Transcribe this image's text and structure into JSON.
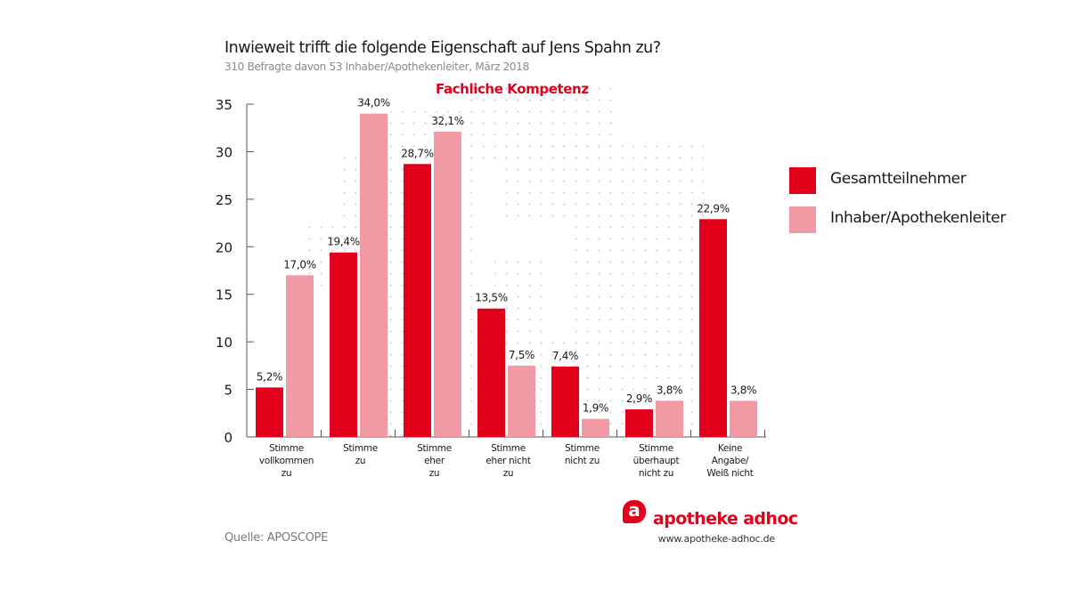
{
  "header": {
    "title": "Inwieweit trifft die folgende Eigenschaft auf Jens Spahn zu?",
    "subtitle": "310 Befragte davon 53 Inhaber/Apothekenleiter, März 2018"
  },
  "footer": {
    "source": "Quelle: APOSCOPE",
    "brand_mark": "a",
    "brand_name": "apotheke adhoc",
    "brand_url": "www.apotheke-adhoc.de"
  },
  "colors": {
    "series_1": "#e2001a",
    "series_2": "#f29aa3",
    "accent": "#e2001a",
    "axis": "#555555",
    "dots": "#cfcfcf"
  },
  "chart_data": {
    "type": "bar",
    "title": "Inwieweit trifft die folgende Eigenschaft auf Jens Spahn zu?",
    "subtitle": "310 Befragte davon 53 Inhaber/Apothekenleiter, März 2018",
    "chart_heading": "Fachliche Kompetenz",
    "xlabel": "",
    "ylabel": "",
    "ylim": [
      0,
      35
    ],
    "yticks": [
      0,
      5,
      10,
      15,
      20,
      25,
      30,
      35
    ],
    "grid": false,
    "legend_position": "right",
    "categories": [
      [
        "Stimme",
        "vollkommen",
        "zu"
      ],
      [
        "Stimme",
        "zu"
      ],
      [
        "Stimme",
        "eher",
        "zu"
      ],
      [
        "Stimme",
        "eher nicht",
        "zu"
      ],
      [
        "Stimme",
        "nicht zu"
      ],
      [
        "Stimme",
        "überhaupt",
        "nicht zu"
      ],
      [
        "Keine",
        "Angabe/",
        "Weiß nicht"
      ]
    ],
    "series": [
      {
        "name": "Gesamtteilnehmer",
        "values": [
          5.2,
          19.4,
          28.7,
          13.5,
          7.4,
          2.9,
          22.9
        ],
        "labels": [
          "5,2%",
          "19,4%",
          "28,7%",
          "13,5%",
          "7,4%",
          "2,9%",
          "22,9%"
        ]
      },
      {
        "name": "Inhaber/Apothekenleiter",
        "values": [
          17.0,
          34.0,
          32.1,
          7.5,
          1.9,
          3.8,
          3.8
        ],
        "labels": [
          "17,0%",
          "34,0%",
          "32,1%",
          "7,5%",
          "1,9%",
          "3,8%",
          "3,8%"
        ]
      }
    ]
  }
}
